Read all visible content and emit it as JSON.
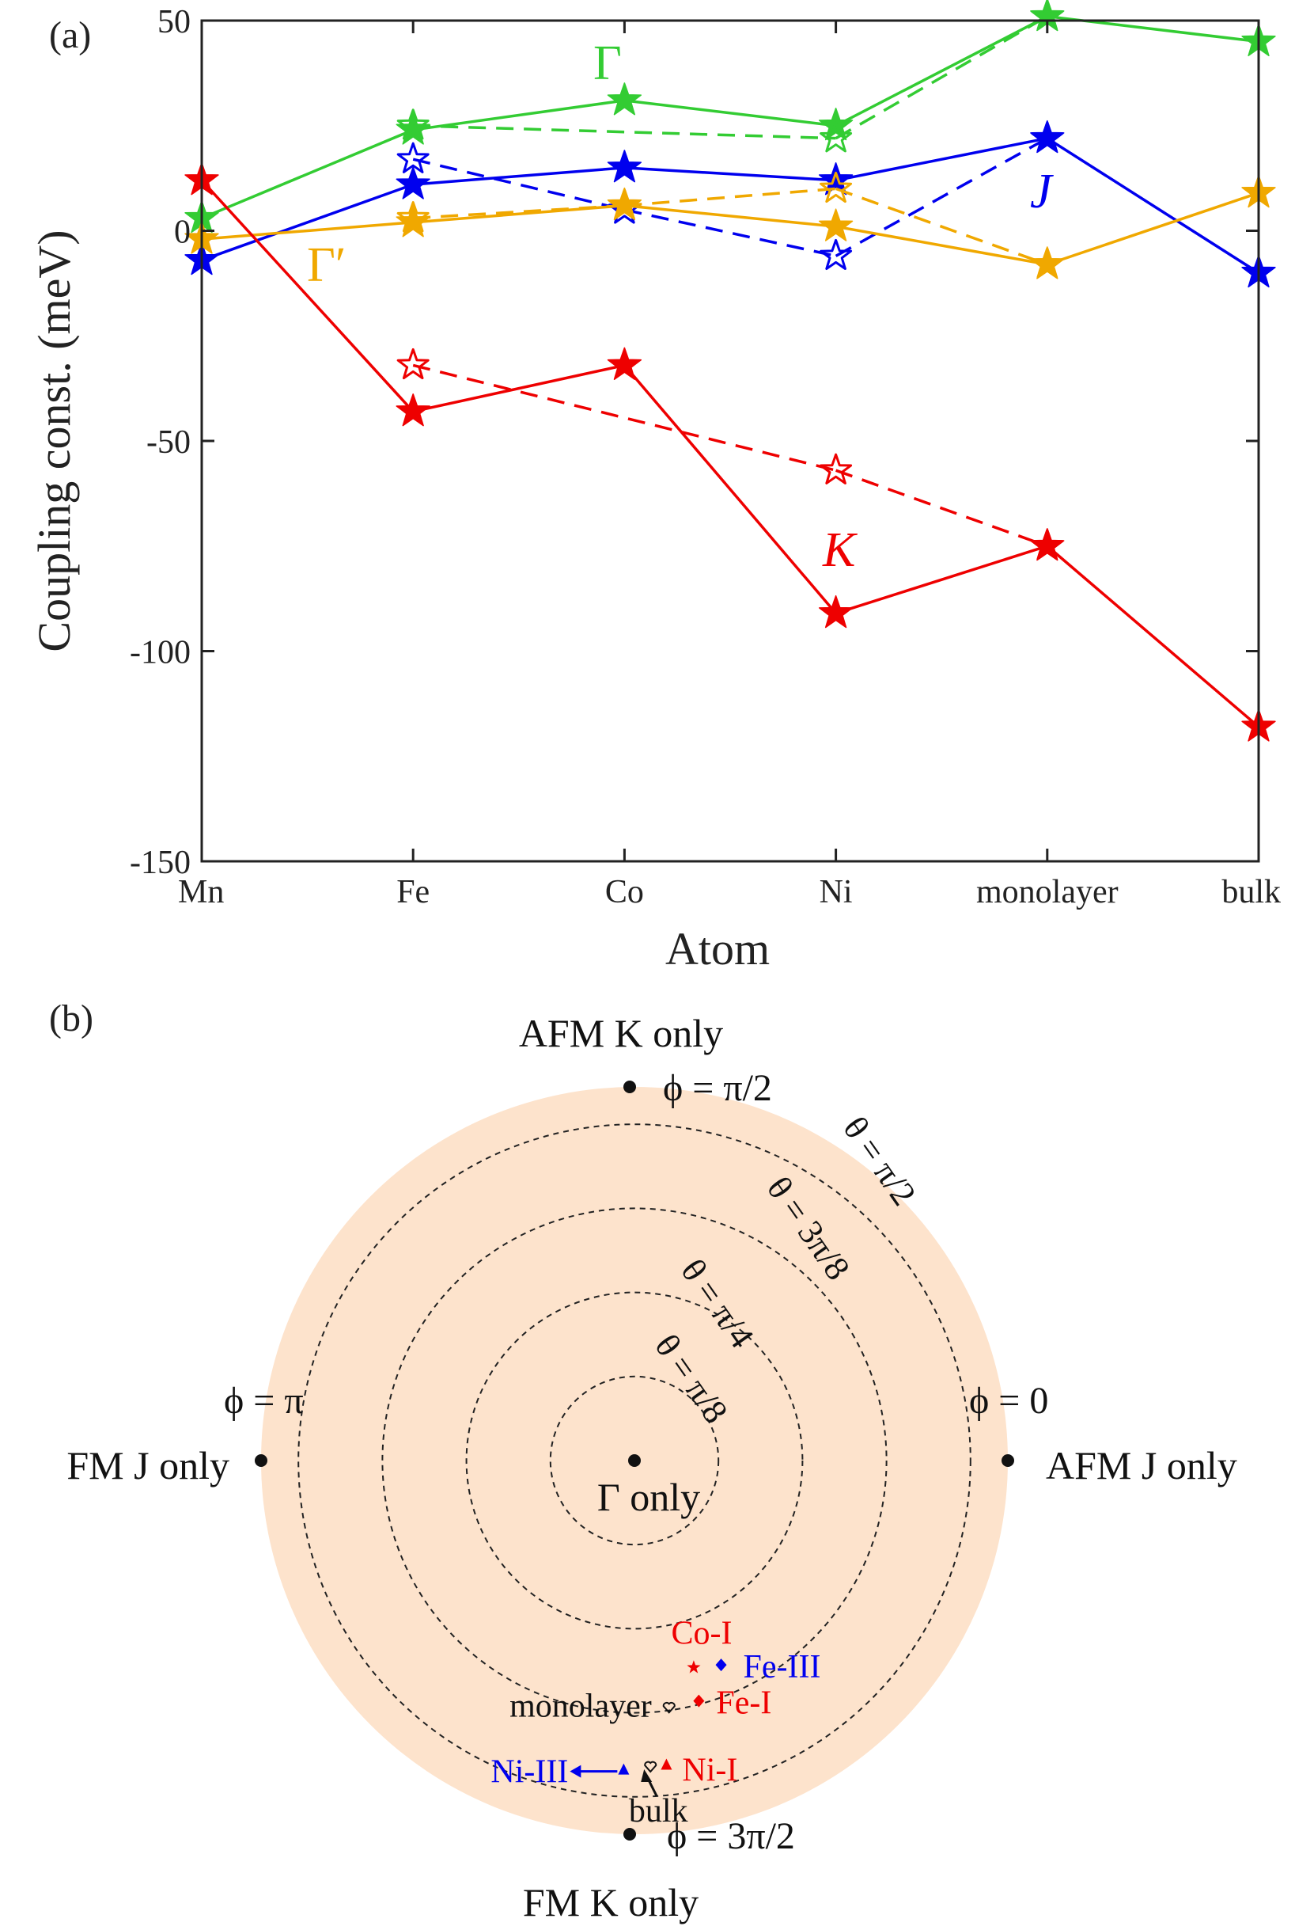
{
  "chart_data": [
    {
      "panel": "(a)",
      "type": "line",
      "xlabel": "Atom",
      "ylabel": "Coupling const. (meV)",
      "ylim": [
        -150,
        50
      ],
      "yticks": [
        50,
        0,
        -50,
        -100,
        -150
      ],
      "ytick_labels": [
        "50",
        "0",
        "-50",
        "-100",
        "-150"
      ],
      "categories": [
        "Mn",
        "Fe",
        "Co",
        "Ni",
        "monolayer",
        "bulk"
      ],
      "grid": false,
      "series": [
        {
          "name": "Γ",
          "label": "Γ",
          "color": "#33cc33",
          "style": "solid",
          "marker": "filled-star",
          "values": [
            3,
            24,
            31,
            25,
            51,
            45
          ]
        },
        {
          "name": "Γ (dashed)",
          "color": "#33cc33",
          "style": "dashed",
          "marker": "open-star",
          "values": [
            null,
            25,
            null,
            22,
            51,
            null
          ]
        },
        {
          "name": "J",
          "label": "J",
          "color": "#0000ee",
          "style": "solid",
          "marker": "filled-star",
          "values": [
            -7,
            11,
            15,
            12,
            22,
            -10
          ]
        },
        {
          "name": "J (dashed)",
          "color": "#0000ee",
          "style": "dashed",
          "marker": "open-star",
          "values": [
            null,
            17,
            5,
            -6,
            22,
            null
          ]
        },
        {
          "name": "Γ′",
          "label": "Γ′",
          "color": "#f0a800",
          "style": "solid",
          "marker": "filled-star",
          "values": [
            -2,
            2,
            6,
            1,
            -8,
            9
          ]
        },
        {
          "name": "Γ′ (dashed)",
          "color": "#f0a800",
          "style": "dashed",
          "marker": "open-star",
          "values": [
            null,
            3,
            6,
            10,
            -8,
            null
          ]
        },
        {
          "name": "K",
          "label": "K",
          "color": "#ee0000",
          "style": "solid",
          "marker": "filled-star",
          "values": [
            12,
            -43,
            -32,
            -91,
            -75,
            -118
          ]
        },
        {
          "name": "K (dashed)",
          "color": "#ee0000",
          "style": "dashed",
          "marker": "open-star",
          "values": [
            null,
            -32,
            null,
            -57,
            -75,
            null
          ]
        }
      ]
    },
    {
      "panel": "(b)",
      "type": "scatter",
      "description_type": "polar phase diagram",
      "background_color": "#fde3cc",
      "theta_circles": [
        {
          "label": "θ = π/8",
          "theta_fraction": 0.25
        },
        {
          "label": "θ = π/4",
          "theta_fraction": 0.5
        },
        {
          "label": "θ = 3π/8",
          "theta_fraction": 0.75
        },
        {
          "label": "θ = π/2",
          "theta_fraction": 1.0
        }
      ],
      "cardinal_points": [
        {
          "id": "top",
          "phi_label": "ϕ = π/2",
          "region_label": "AFM K only"
        },
        {
          "id": "right",
          "phi_label": "ϕ = 0",
          "region_label": "AFM J only"
        },
        {
          "id": "left",
          "phi_label": "ϕ = π",
          "region_label": "FM J only"
        },
        {
          "id": "bottom",
          "phi_label": "ϕ = 3π/2",
          "region_label": "FM K only"
        },
        {
          "id": "center",
          "phi_label": "",
          "region_label": "Γ only"
        }
      ],
      "points": [
        {
          "label": "Co-I",
          "color": "#ee0000",
          "marker": "star",
          "r": 0.64,
          "phi_deg": 286
        },
        {
          "label": "Fe-III",
          "color": "#0000ee",
          "marker": "diamond",
          "r": 0.66,
          "phi_deg": 293
        },
        {
          "label": "monolayer",
          "color": "#111111",
          "marker": "heart-open",
          "r": 0.74,
          "phi_deg": 278
        },
        {
          "label": "Fe-I",
          "color": "#ee0000",
          "marker": "diamond",
          "r": 0.74,
          "phi_deg": 285
        },
        {
          "label": "Ni-III",
          "color": "#0000ee",
          "marker": "triangle",
          "r": 0.92,
          "phi_deg": 268
        },
        {
          "label": "bulk",
          "color": "#111111",
          "marker": "heart-open",
          "r": 0.91,
          "phi_deg": 273
        },
        {
          "label": "Ni-I",
          "color": "#ee0000",
          "marker": "triangle",
          "r": 0.91,
          "phi_deg": 276
        }
      ]
    }
  ],
  "labels": {
    "panel_a": "(a)",
    "panel_b": "(b)",
    "gamma": "Γ",
    "j": "J",
    "gamma_prime": "Γ′",
    "k": "K"
  }
}
